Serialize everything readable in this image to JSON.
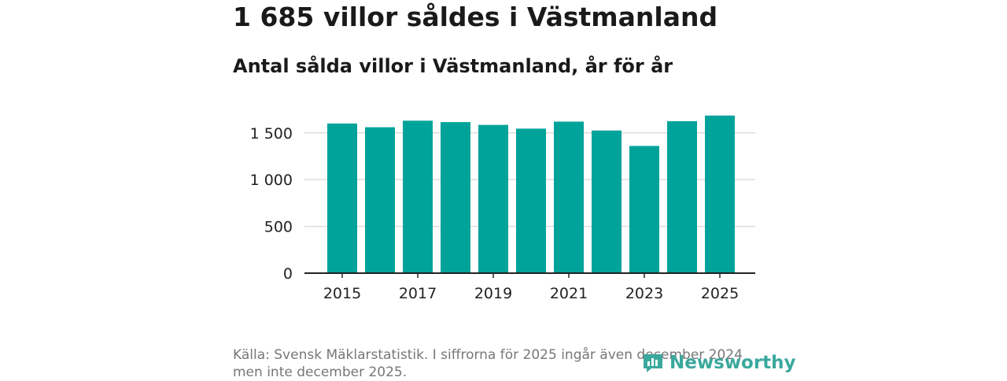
{
  "header": {
    "title": "1 685 villor såldes i Västmanland",
    "subtitle": "Antal sålda villor i Västmanland, år för år"
  },
  "chart_data": {
    "type": "bar",
    "title": "1 685 villor såldes i Västmanland",
    "subtitle": "Antal sålda villor i Västmanland, år för år",
    "categories": [
      "2015",
      "2016",
      "2017",
      "2018",
      "2019",
      "2020",
      "2021",
      "2022",
      "2023",
      "2024",
      "2025"
    ],
    "values": [
      1600,
      1560,
      1630,
      1615,
      1585,
      1545,
      1620,
      1525,
      1360,
      1625,
      1685
    ],
    "xlabel": "",
    "ylabel": "",
    "ylim": [
      0,
      1700
    ],
    "y_ticks": [
      0,
      500,
      1000,
      1500
    ],
    "y_tick_labels": [
      "0",
      "500",
      "1 000",
      "1 500"
    ],
    "x_tick_labels": [
      "2015",
      "2017",
      "2019",
      "2021",
      "2023",
      "2025"
    ],
    "grid": true,
    "bar_color": "#00a39a"
  },
  "footer": {
    "source": "Källa: Svensk Mäklarstatistik. I siffrorna för 2025 ingår även december 2024 men inte december 2025.",
    "logo_text": "Newsworthy"
  },
  "colors": {
    "bar": "#00a39a",
    "grid": "#dddddd",
    "axis": "#222222",
    "logo": "#3aa89d"
  }
}
